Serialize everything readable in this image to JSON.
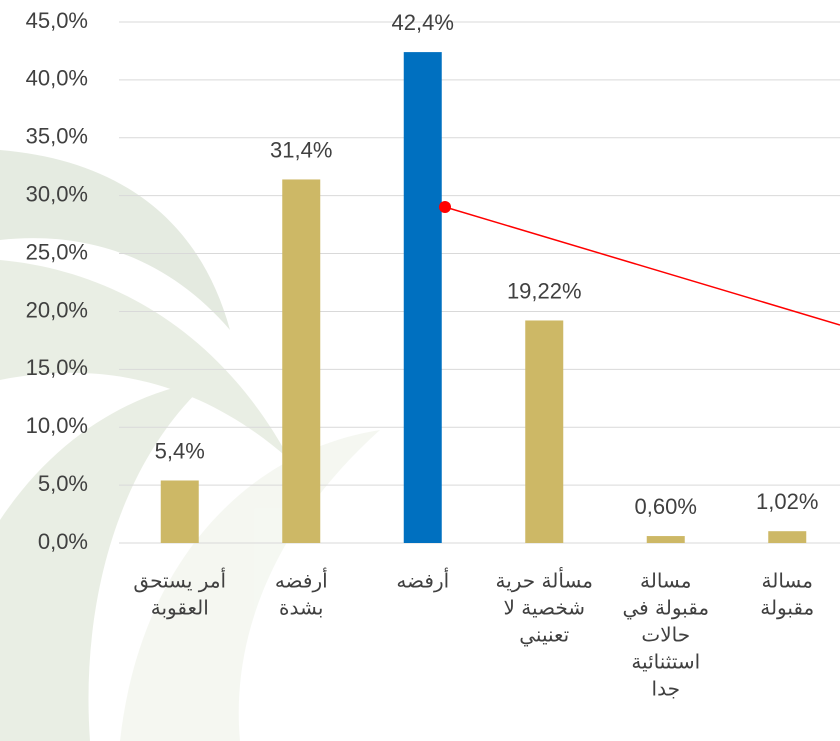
{
  "chart_data": {
    "type": "bar",
    "categories": [
      [
        "أمر يستحق",
        "العقوبة"
      ],
      [
        "أرفضه",
        "بشدة"
      ],
      [
        "أرفضه"
      ],
      [
        "مسألة حرية",
        "شخصية لا",
        "تعنيني"
      ],
      [
        "مسالة",
        "مقبولة في",
        "حالات",
        "استثنائية",
        "جدا"
      ],
      [
        "مسالة",
        "مقبولة"
      ]
    ],
    "values": [
      5.4,
      31.4,
      42.4,
      19.22,
      0.6,
      1.02
    ],
    "value_labels": [
      "5,4%",
      "31,4%",
      "42,4%",
      "19,22%",
      "0,60%",
      "1,02%"
    ],
    "colors": [
      "#cdb866",
      "#cdb866",
      "#0070c0",
      "#cdb866",
      "#cdb866",
      "#cdb866"
    ],
    "ylim": [
      0,
      45
    ],
    "yticks": [
      {
        "value": 0,
        "label": "0,0%"
      },
      {
        "value": 5,
        "label": "5,0%"
      },
      {
        "value": 10,
        "label": "10,0%"
      },
      {
        "value": 15,
        "label": "15,0%"
      },
      {
        "value": 20,
        "label": "20,0%"
      },
      {
        "value": 25,
        "label": "25,0%"
      },
      {
        "value": 30,
        "label": "30,0%"
      },
      {
        "value": 35,
        "label": "35,0%"
      },
      {
        "value": 40,
        "label": "40,0%"
      },
      {
        "value": 45,
        "label": "45,0%"
      }
    ],
    "grid": true
  }
}
